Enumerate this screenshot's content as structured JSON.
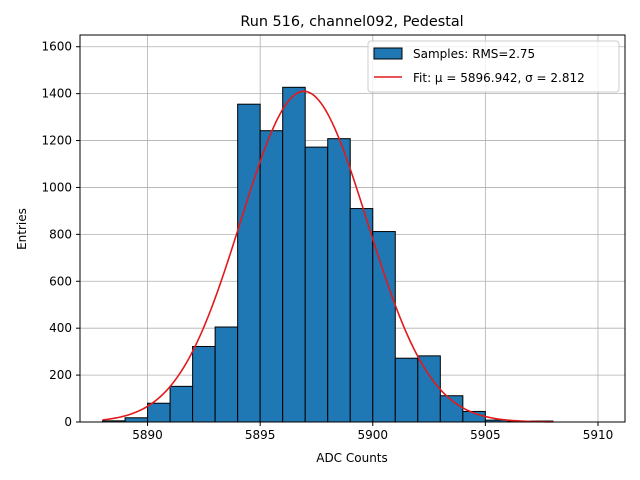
{
  "chart_data": {
    "type": "bar",
    "title": "Run 516, channel092, Pedestal",
    "xlabel": "ADC Counts",
    "ylabel": "Entries",
    "xlim": [
      5887.0,
      5911.2
    ],
    "ylim": [
      0,
      1650
    ],
    "xticks": [
      5890,
      5895,
      5900,
      5905,
      5910
    ],
    "yticks": [
      0,
      200,
      400,
      600,
      800,
      1000,
      1200,
      1400,
      1600
    ],
    "grid": true,
    "legend_position": "top-right",
    "histogram": {
      "name": "Samples: RMS=2.75",
      "color": "#1f77b4",
      "edgecolor": "#000000",
      "bins": [
        {
          "x0": 5888,
          "x1": 5889,
          "count": 5
        },
        {
          "x0": 5889,
          "x1": 5890,
          "count": 18
        },
        {
          "x0": 5890,
          "x1": 5891,
          "count": 80
        },
        {
          "x0": 5891,
          "x1": 5892,
          "count": 152
        },
        {
          "x0": 5892,
          "x1": 5893,
          "count": 322
        },
        {
          "x0": 5893,
          "x1": 5894,
          "count": 405
        },
        {
          "x0": 5894,
          "x1": 5895,
          "count": 1355
        },
        {
          "x0": 5895,
          "x1": 5896,
          "count": 1242
        },
        {
          "x0": 5896,
          "x1": 5897,
          "count": 1427
        },
        {
          "x0": 5897,
          "x1": 5898,
          "count": 1172
        },
        {
          "x0": 5898,
          "x1": 5899,
          "count": 1208
        },
        {
          "x0": 5899,
          "x1": 5900,
          "count": 910
        },
        {
          "x0": 5900,
          "x1": 5901,
          "count": 812
        },
        {
          "x0": 5901,
          "x1": 5902,
          "count": 272
        },
        {
          "x0": 5902,
          "x1": 5903,
          "count": 282
        },
        {
          "x0": 5903,
          "x1": 5904,
          "count": 112
        },
        {
          "x0": 5904,
          "x1": 5905,
          "count": 45
        },
        {
          "x0": 5905,
          "x1": 5906,
          "count": 8
        },
        {
          "x0": 5906,
          "x1": 5907,
          "count": 3
        },
        {
          "x0": 5907,
          "x1": 5908,
          "count": 4
        }
      ]
    },
    "fit": {
      "name": "Fit: μ = 5896.942, σ = 2.812",
      "color": "#e31a1c",
      "mu": 5896.942,
      "sigma": 2.812,
      "amplitude": 1410,
      "x_range": [
        5888,
        5908
      ]
    }
  }
}
